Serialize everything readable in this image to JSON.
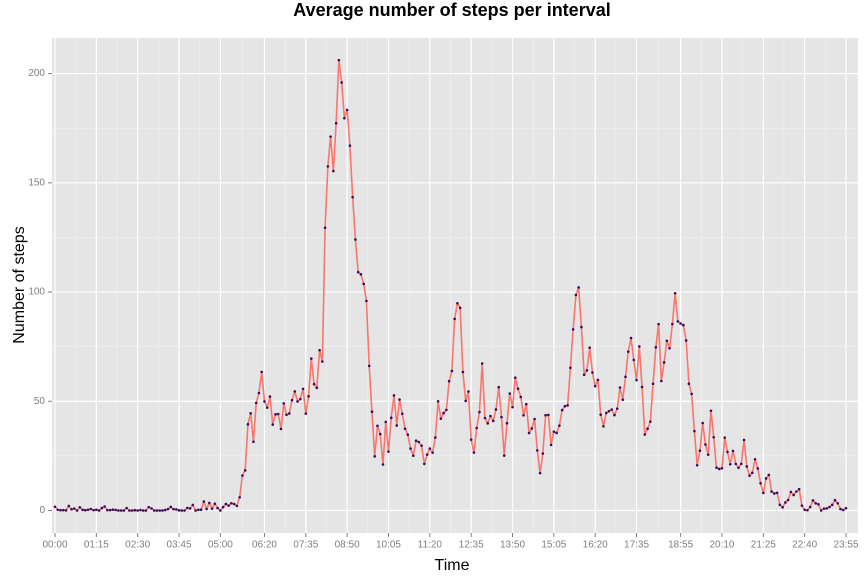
{
  "chart_data": {
    "type": "line",
    "title": "Average number of steps per interval",
    "x_label": "Time",
    "y_label": "Number of steps",
    "categories": [
      "00:00",
      null,
      null,
      null,
      null,
      null,
      null,
      null,
      null,
      null,
      null,
      null,
      null,
      null,
      null,
      "01:15",
      null,
      null,
      null,
      null,
      null,
      null,
      null,
      null,
      null,
      null,
      null,
      null,
      null,
      null,
      "02:30",
      null,
      null,
      null,
      null,
      null,
      null,
      null,
      null,
      null,
      null,
      null,
      null,
      null,
      null,
      "03:45",
      null,
      null,
      null,
      null,
      null,
      null,
      null,
      null,
      null,
      null,
      null,
      null,
      null,
      null,
      "05:00",
      null,
      null,
      null,
      null,
      null,
      null,
      null,
      null,
      null,
      null,
      null,
      null,
      null,
      null,
      null,
      "06:20",
      null,
      null,
      null,
      null,
      null,
      null,
      null,
      null,
      null,
      null,
      null,
      null,
      null,
      null,
      "07:35",
      null,
      null,
      null,
      null,
      null,
      null,
      null,
      null,
      null,
      null,
      null,
      null,
      null,
      null,
      "08:50",
      null,
      null,
      null,
      null,
      null,
      null,
      null,
      null,
      null,
      null,
      null,
      null,
      null,
      null,
      "10:05",
      null,
      null,
      null,
      null,
      null,
      null,
      null,
      null,
      null,
      null,
      null,
      null,
      null,
      null,
      "11:20",
      null,
      null,
      null,
      null,
      null,
      null,
      null,
      null,
      null,
      null,
      null,
      null,
      null,
      null,
      "12:35",
      null,
      null,
      null,
      null,
      null,
      null,
      null,
      null,
      null,
      null,
      null,
      null,
      null,
      null,
      "13:50",
      null,
      null,
      null,
      null,
      null,
      null,
      null,
      null,
      null,
      null,
      null,
      null,
      null,
      null,
      "15:05",
      null,
      null,
      null,
      null,
      null,
      null,
      null,
      null,
      null,
      null,
      null,
      null,
      null,
      null,
      "16:20",
      null,
      null,
      null,
      null,
      null,
      null,
      null,
      null,
      null,
      null,
      null,
      null,
      null,
      null,
      "17:35",
      null,
      null,
      null,
      null,
      null,
      null,
      null,
      null,
      null,
      null,
      null,
      null,
      null,
      null,
      null,
      "18:55",
      null,
      null,
      null,
      null,
      null,
      null,
      null,
      null,
      null,
      null,
      null,
      null,
      null,
      null,
      "20:10",
      null,
      null,
      null,
      null,
      null,
      null,
      null,
      null,
      null,
      null,
      null,
      null,
      null,
      null,
      "21:25",
      null,
      null,
      null,
      null,
      null,
      null,
      null,
      null,
      null,
      null,
      null,
      null,
      null,
      null,
      "22:40",
      null,
      null,
      null,
      null,
      null,
      null,
      null,
      null,
      null,
      null,
      null,
      null,
      null,
      null,
      "23:55"
    ],
    "series": [
      {
        "name": "steps",
        "color": "#f8766d",
        "point_color": "#3b0b5f",
        "values": [
          1.72,
          0.34,
          0.13,
          0.15,
          0.08,
          2.09,
          0.53,
          0.87,
          0,
          1.47,
          0.3,
          0.13,
          0.32,
          0.68,
          0.15,
          0.34,
          0,
          1.11,
          1.83,
          0.17,
          0.17,
          0.38,
          0.26,
          0,
          0,
          0,
          1.13,
          0,
          0,
          0.13,
          0,
          0.23,
          0,
          0,
          1.55,
          0.94,
          0,
          0,
          0,
          0,
          0.21,
          0.62,
          1.62,
          0.58,
          0.49,
          0.08,
          0,
          0,
          1.19,
          0.94,
          2.57,
          0,
          0.34,
          0.36,
          4.11,
          0.66,
          3.49,
          0.83,
          3.11,
          1.11,
          0,
          1.57,
          3,
          2.25,
          3.32,
          2.96,
          2.09,
          6.06,
          16.02,
          18.34,
          39.45,
          44.49,
          31.49,
          49.26,
          53.77,
          63.45,
          49.96,
          47.08,
          52.15,
          39.34,
          44.02,
          44.17,
          37.36,
          49.04,
          43.81,
          44.38,
          50.51,
          54.51,
          49.92,
          50.98,
          55.68,
          44.32,
          52.26,
          69.55,
          57.85,
          56.15,
          73.38,
          68.21,
          129.43,
          157.53,
          171.15,
          155.4,
          177.3,
          206.17,
          195.92,
          179.57,
          183.4,
          167.02,
          143.45,
          124.04,
          109.11,
          108.11,
          103.72,
          95.96,
          66.21,
          45.23,
          24.79,
          38.75,
          34.98,
          21.06,
          40.57,
          26.98,
          42.42,
          52.66,
          38.92,
          50.79,
          44.28,
          37.42,
          34.7,
          28.34,
          25.09,
          31.94,
          31.36,
          29.68,
          21.32,
          25.55,
          28.38,
          26.47,
          33.43,
          49.98,
          42.04,
          44.6,
          46.04,
          59.19,
          63.87,
          87.7,
          94.85,
          92.77,
          63.4,
          50.17,
          54.47,
          32.42,
          26.53,
          37.74,
          45.06,
          67.28,
          42.34,
          39.89,
          43.26,
          40.98,
          46.25,
          56.43,
          42.75,
          25.13,
          39.96,
          53.55,
          47.32,
          60.81,
          55.75,
          51.96,
          43.58,
          48.7,
          35.47,
          37.55,
          41.85,
          27.51,
          17.11,
          26.08,
          43.62,
          43.77,
          30.02,
          36.08,
          35.49,
          38.85,
          45.96,
          47.75,
          48.13,
          65.32,
          82.91,
          98.66,
          102.11,
          83.96,
          62.13,
          64.13,
          74.55,
          63.17,
          56.91,
          59.77,
          43.87,
          38.57,
          44.66,
          45.45,
          46.21,
          43.68,
          46.62,
          56.3,
          50.72,
          61.23,
          72.72,
          78.94,
          68.94,
          59.66,
          75.09,
          56.51,
          34.77,
          37.45,
          40.68,
          58.02,
          74.7,
          85.32,
          59.26,
          67.77,
          77.7,
          74.25,
          85.34,
          99.45,
          86.58,
          85.6,
          84.87,
          77.83,
          58.04,
          53.36,
          36.32,
          20.72,
          27.4,
          40.02,
          30.21,
          25.55,
          45.66,
          33.53,
          19.62,
          19.02,
          19.34,
          33.34,
          26.81,
          21.17,
          27.3,
          21.34,
          19.55,
          21.32,
          32.3,
          20.15,
          15.94,
          17.23,
          23.45,
          19.25,
          12.45,
          8.02,
          14.66,
          16.3,
          8.68,
          7.79,
          8.13,
          2.62,
          1.45,
          3.68,
          4.81,
          8.51,
          7.08,
          8.7,
          9.75,
          2.21,
          0.32,
          0.11,
          1.6,
          4.6,
          3.3,
          2.85,
          0,
          0.83,
          0.96,
          1.58,
          2.6,
          4.7,
          3.3,
          0.64,
          0.23,
          1.08
        ]
      }
    ],
    "ylim": [
      -10.3,
      216.3
    ],
    "yticks": [
      0,
      50,
      100,
      150,
      200
    ],
    "grid": true
  }
}
